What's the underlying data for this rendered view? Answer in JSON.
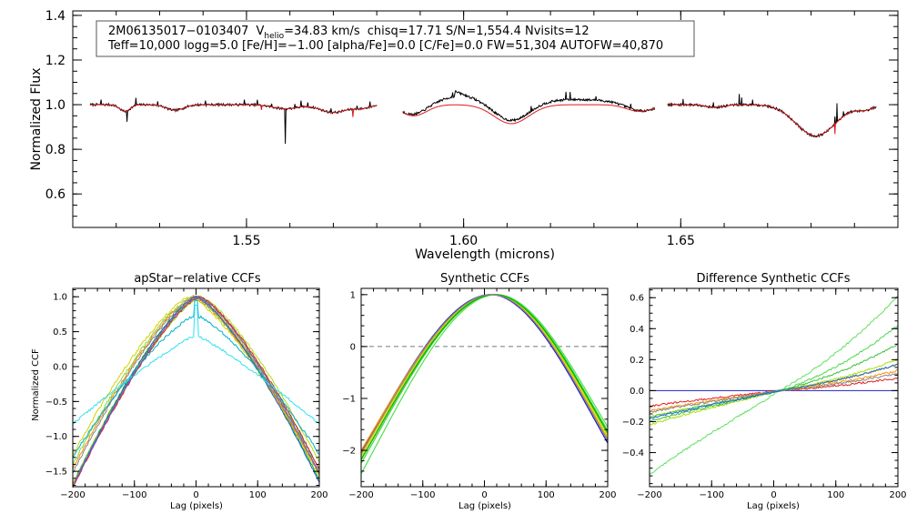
{
  "chart_data": [
    {
      "type": "line",
      "id": "spectrum",
      "title": "",
      "xlabel": "Wavelength (microns)",
      "ylabel": "Normalized Flux",
      "xlim": [
        1.51,
        1.7
      ],
      "ylim": [
        0.45,
        1.42
      ],
      "xticks": [
        1.55,
        1.6,
        1.65
      ],
      "xtick_labels": [
        "1.55",
        "1.60",
        "1.65"
      ],
      "yticks": [
        0.6,
        0.8,
        1.0,
        1.2,
        1.4
      ],
      "ytick_labels": [
        "0.6",
        "0.8",
        "1.0",
        "1.2",
        "1.4"
      ],
      "annotation": {
        "star": "2M06135017−0103407",
        "v_main": "V",
        "v_sub": "helio",
        "v_value": "=34.83 km/s",
        "stats": "chisq=17.71  S/N=1,554.4  Nvisits=12",
        "line2": "Teff=10,000 logg=5.0 [Fe/H]=−1.00 [alpha/Fe]=0.0 [C/Fe]=0.0 FW=51,304 AUTOFW=40,870"
      },
      "chips": [
        {
          "range": [
            1.514,
            1.58
          ],
          "lines": [
            {
              "w": 1.522,
              "d": 0.03,
              "s": 0.0012
            },
            {
              "w": 1.5335,
              "d": 0.025,
              "s": 0.002
            },
            {
              "w": 1.559,
              "d": 0.018,
              "s": 0.003
            },
            {
              "w": 1.57,
              "d": 0.035,
              "s": 0.003
            },
            {
              "w": 1.5765,
              "d": 0.015,
              "s": 0.002
            }
          ]
        },
        {
          "range": [
            1.586,
            1.644
          ],
          "lines": [
            {
              "w": 1.5885,
              "d": 0.05,
              "s": 0.003
            },
            {
              "w": 1.611,
              "d": 0.085,
              "s": 0.004
            },
            {
              "w": 1.6405,
              "d": 0.03,
              "s": 0.003
            }
          ]
        },
        {
          "range": [
            1.647,
            1.695
          ],
          "lines": [
            {
              "w": 1.658,
              "d": 0.012,
              "s": 0.002
            },
            {
              "w": 1.6811,
              "d": 0.14,
              "s": 0.0045
            },
            {
              "w": 1.6925,
              "d": 0.02,
              "s": 0.002
            }
          ]
        }
      ],
      "spikes": [
        {
          "w": 1.5165,
          "v": 0.02
        },
        {
          "w": 1.5225,
          "v": -0.05
        },
        {
          "w": 1.5245,
          "v": 0.035
        },
        {
          "w": 1.5295,
          "v": 0.02
        },
        {
          "w": 1.5405,
          "v": 0.02
        },
        {
          "w": 1.5495,
          "v": 0.025
        },
        {
          "w": 1.5525,
          "v": 0.02
        },
        {
          "w": 1.5558,
          "v": 0.015
        },
        {
          "w": 1.559,
          "v": -0.16
        },
        {
          "w": 1.5612,
          "v": 0.02
        },
        {
          "w": 1.5625,
          "v": 0.025
        },
        {
          "w": 1.5642,
          "v": 0.015
        },
        {
          "w": 1.5695,
          "v": 0.02
        },
        {
          "w": 1.5755,
          "v": 0.02
        },
        {
          "w": 1.5785,
          "v": 0.02
        },
        {
          "w": 1.5975,
          "v": 0.02
        },
        {
          "w": 1.6155,
          "v": 0.02
        },
        {
          "w": 1.6235,
          "v": 0.04
        },
        {
          "w": 1.6245,
          "v": 0.03
        },
        {
          "w": 1.6305,
          "v": 0.02
        },
        {
          "w": 1.6385,
          "v": 0.025
        },
        {
          "w": 1.6505,
          "v": 0.025
        },
        {
          "w": 1.6575,
          "v": 0.025
        },
        {
          "w": 1.6635,
          "v": 0.05
        },
        {
          "w": 1.664,
          "v": 0.035
        },
        {
          "w": 1.6665,
          "v": 0.02
        },
        {
          "w": 1.6855,
          "v": 0.035
        },
        {
          "w": 1.686,
          "v": 0.085
        },
        {
          "w": 1.6875,
          "v": 0.02
        }
      ],
      "model_dips": [
        {
          "w": 1.5745,
          "v": -0.035
        },
        {
          "w": 1.6855,
          "v": -0.045
        },
        {
          "w": 1.5535,
          "v": -0.02
        }
      ],
      "chip2_hump": {
        "center": 1.598,
        "height": 0.07,
        "width": 0.009
      },
      "chip2_hump2": {
        "center": 1.627,
        "height": 0.03,
        "width": 0.01
      },
      "series": [
        {
          "name": "observed",
          "color": "#000000"
        },
        {
          "name": "model",
          "color": "#e01818"
        }
      ]
    },
    {
      "type": "line",
      "id": "ccf1",
      "title": "apStar−relative CCFs",
      "xlabel": "Lag (pixels)",
      "ylabel": "Normalized CCF",
      "xlim": [
        -200,
        200
      ],
      "ylim": [
        -1.72,
        1.12
      ],
      "xticks": [
        -200,
        -100,
        0,
        100,
        200
      ],
      "xtick_labels": [
        "−200",
        "−100",
        "0",
        "100",
        "200"
      ],
      "yticks": [
        -1.5,
        -1.0,
        -0.5,
        0.0,
        0.5,
        1.0
      ],
      "ytick_labels": [
        "−1.5",
        "−1.0",
        "−0.5",
        "0.0",
        "0.5",
        "1.0"
      ],
      "series": [
        {
          "name": "v1",
          "color": "#00b400",
          "peak": 0,
          "w": 96,
          "edge": -1.62,
          "noise": 0.012,
          "seed": 11
        },
        {
          "name": "v2",
          "color": "#44cc44",
          "peak": 4,
          "w": 94,
          "edge": -1.55,
          "noise": 0.015,
          "seed": 12
        },
        {
          "name": "v3",
          "color": "#7ad84a",
          "peak": -6,
          "w": 98,
          "edge": -1.45,
          "noise": 0.02,
          "seed": 13
        },
        {
          "name": "v4",
          "color": "#a8e010",
          "peak": 8,
          "w": 92,
          "edge": -1.5,
          "noise": 0.015,
          "seed": 14
        },
        {
          "name": "v5",
          "color": "#d8d000",
          "peak": -10,
          "w": 100,
          "edge": -1.38,
          "noise": 0.02,
          "seed": 15
        },
        {
          "name": "v6",
          "color": "#e8b000",
          "peak": 2,
          "w": 90,
          "edge": -1.6,
          "noise": 0.018,
          "seed": 16
        },
        {
          "name": "v7",
          "color": "#ff8800",
          "peak": -4,
          "w": 97,
          "edge": -1.48,
          "noise": 0.02,
          "seed": 17
        },
        {
          "name": "v8",
          "color": "#e02020",
          "peak": 6,
          "w": 93,
          "edge": -1.57,
          "noise": 0.015,
          "seed": 18
        },
        {
          "name": "v9",
          "color": "#888888",
          "peak": -2,
          "w": 95,
          "edge": -1.5,
          "noise": 0.018,
          "seed": 19
        },
        {
          "name": "v10",
          "color": "#2060e0",
          "peak": 0,
          "w": 95,
          "edge": -1.66,
          "noise": 0.01,
          "seed": 20
        },
        {
          "name": "v11",
          "color": "#00b0c8",
          "peak": 0,
          "w": 120,
          "edge": -1.25,
          "noise": 0.02,
          "seed": 21,
          "spike": 0.95,
          "base": 0.73
        },
        {
          "name": "v12",
          "color": "#30e0f0",
          "peak": 0,
          "w": 220,
          "edge": -0.82,
          "noise": 0.015,
          "seed": 22,
          "spike": 0.88,
          "base": 0.45
        },
        {
          "name": "v13",
          "color": "#8050c0",
          "peak": 4,
          "w": 94,
          "edge": -1.6,
          "noise": 0.01,
          "seed": 23
        }
      ]
    },
    {
      "type": "line",
      "id": "ccf2",
      "title": "Synthetic CCFs",
      "xlabel": "Lag (pixels)",
      "ylabel": "",
      "xlim": [
        -200,
        200
      ],
      "ylim": [
        -2.7,
        1.12
      ],
      "xticks": [
        -200,
        -100,
        0,
        100,
        200
      ],
      "xtick_labels": [
        "−200",
        "−100",
        "0",
        "100",
        "200"
      ],
      "yticks": [
        -2,
        -1,
        0,
        1
      ],
      "ytick_labels": [
        "−2",
        "−1",
        "0",
        "1"
      ],
      "reference_line": 0,
      "series": [
        {
          "name": "s1",
          "color": "#1a1ad0",
          "peak": 10,
          "left": -2.02,
          "right": -1.86
        },
        {
          "name": "s2",
          "color": "#e02020",
          "peak": 12,
          "left": -2.05,
          "right": -1.8
        },
        {
          "name": "s3",
          "color": "#ff9000",
          "peak": 13,
          "left": -2.0,
          "right": -1.78
        },
        {
          "name": "s4",
          "color": "#e8d000",
          "peak": 14,
          "left": -2.1,
          "right": -1.75
        },
        {
          "name": "s5",
          "color": "#a8e010",
          "peak": 16,
          "left": -2.15,
          "right": -1.7
        },
        {
          "name": "s6",
          "color": "#40d040",
          "peak": 18,
          "left": -2.25,
          "right": -1.62
        },
        {
          "name": "s7",
          "color": "#50e050",
          "peak": 20,
          "left": -2.45,
          "right": -1.55
        },
        {
          "name": "s8",
          "color": "#00b400",
          "peak": 17,
          "left": -2.18,
          "right": -1.66
        },
        {
          "name": "s9",
          "color": "#888888",
          "peak": 12,
          "left": -2.06,
          "right": -1.81
        }
      ]
    },
    {
      "type": "line",
      "id": "ccf3",
      "title": "Difference Synthetic CCFs",
      "xlabel": "Lag (pixels)",
      "ylabel": "",
      "xlim": [
        -200,
        200
      ],
      "ylim": [
        -0.62,
        0.66
      ],
      "xticks": [
        -200,
        -100,
        0,
        100,
        200
      ],
      "xtick_labels": [
        "−200",
        "−100",
        "0",
        "100",
        "200"
      ],
      "yticks": [
        -0.4,
        -0.2,
        0.0,
        0.2,
        0.4,
        0.6
      ],
      "ytick_labels": [
        "−0.4",
        "−0.2",
        "0.0",
        "0.2",
        "0.4",
        "0.6"
      ],
      "series": [
        {
          "name": "d0",
          "color": "#2020c0",
          "flat": true
        },
        {
          "name": "d1",
          "color": "#e02020",
          "left": -0.1,
          "right": 0.08,
          "curve": 0.02,
          "seed": 31
        },
        {
          "name": "d2",
          "color": "#ff9000",
          "left": -0.13,
          "right": 0.13,
          "curve": 0.03,
          "seed": 32
        },
        {
          "name": "d3",
          "color": "#e8d000",
          "left": -0.17,
          "right": 0.17,
          "curve": 0.05,
          "seed": 33
        },
        {
          "name": "d4",
          "color": "#a8e010",
          "left": -0.22,
          "right": 0.2,
          "curve": 0.06,
          "seed": 34
        },
        {
          "name": "d5",
          "color": "#40c040",
          "left": -0.2,
          "right": 0.3,
          "curve": 0.09,
          "seed": 35
        },
        {
          "name": "d6",
          "color": "#50d850",
          "left": -0.17,
          "right": 0.42,
          "curve": 0.13,
          "seed": 36
        },
        {
          "name": "d7",
          "color": "#60e060",
          "left": -0.54,
          "right": 0.61,
          "curve": 0.0,
          "seed": 37
        },
        {
          "name": "d8",
          "color": "#888888",
          "left": -0.14,
          "right": 0.11,
          "curve": 0.02,
          "seed": 38
        },
        {
          "name": "d9",
          "color": "#2060e0",
          "left": -0.18,
          "right": 0.17,
          "curve": 0.04,
          "seed": 39
        }
      ]
    }
  ]
}
